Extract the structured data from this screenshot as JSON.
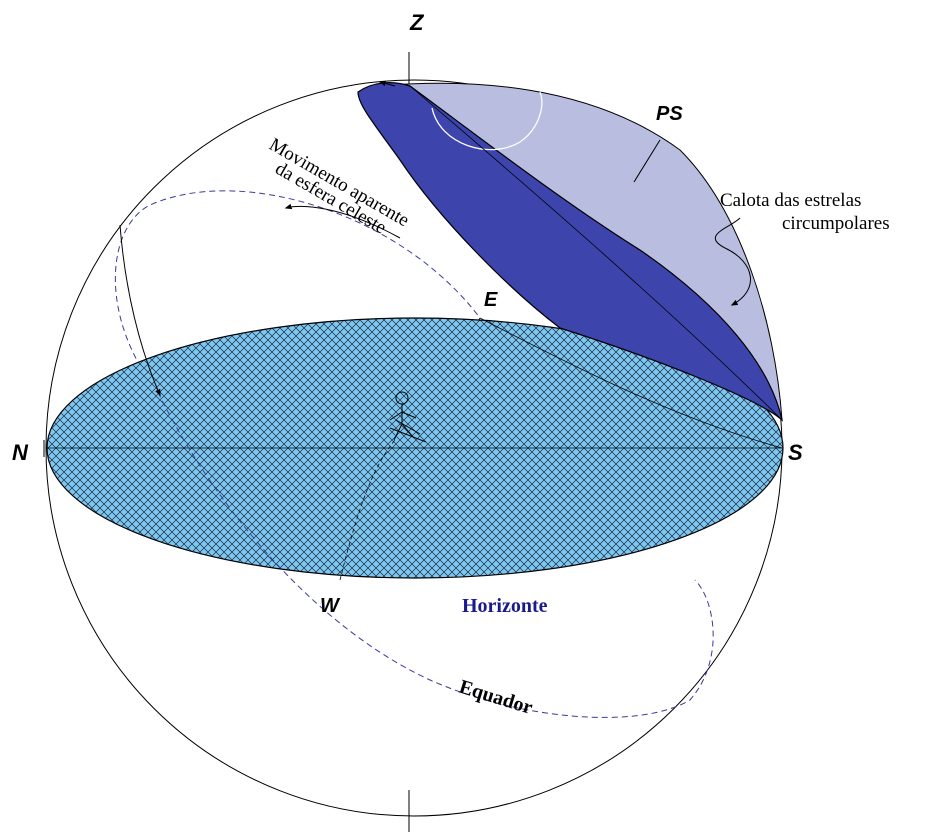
{
  "labels": {
    "zenith": "Z",
    "pole_south": "PS",
    "north": "N",
    "south": "S",
    "east": "E",
    "west": "W",
    "horizon": "Horizonte",
    "equator": "Equador",
    "cap_line1": "Calota das estrelas",
    "cap_line2": "circumpolares",
    "motion_line1": "Movimento aparente",
    "motion_line2": "da esfera celeste"
  },
  "colors": {
    "horizon_fill": "#7ec8ee",
    "horizon_hatch": "#1a2a4a",
    "equator_line": "#3a3a9a",
    "cap_dark": "#3d45ad",
    "cap_light": "#b9bde0",
    "horizon_text": "#1a1a8c",
    "outline": "#000000"
  }
}
